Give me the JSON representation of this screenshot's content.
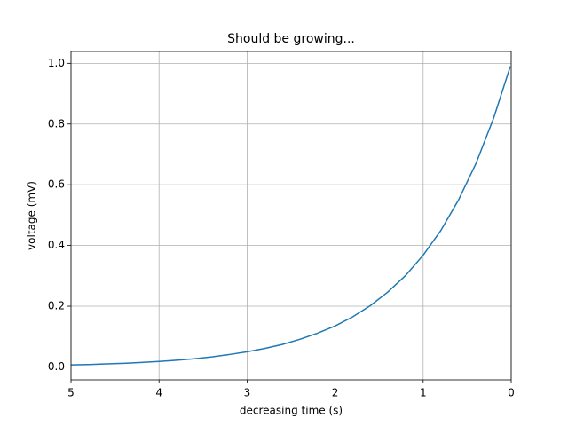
{
  "chart_data": {
    "type": "line",
    "title": "Should be growing...",
    "xlabel": "decreasing time (s)",
    "ylabel": "voltage (mV)",
    "x": [
      0.01,
      0.2,
      0.4,
      0.6,
      0.8,
      1.0,
      1.2,
      1.4,
      1.6,
      1.8,
      2.0,
      2.2,
      2.4,
      2.6,
      2.8,
      3.0,
      3.2,
      3.4,
      3.6,
      3.8,
      4.0,
      4.2,
      4.4,
      4.6,
      4.8,
      5.0
    ],
    "series": [
      {
        "color": "#1f77b4",
        "values": [
          0.99,
          0.819,
          0.67,
          0.549,
          0.449,
          0.368,
          0.301,
          0.247,
          0.202,
          0.165,
          0.135,
          0.111,
          0.091,
          0.074,
          0.061,
          0.05,
          0.041,
          0.033,
          0.027,
          0.022,
          0.018,
          0.015,
          0.012,
          0.01,
          0.008,
          0.007
        ]
      }
    ],
    "xlim": [
      5,
      0
    ],
    "xticks": [
      5,
      4,
      3,
      2,
      1,
      0
    ],
    "ylim": [
      -0.0425,
      1.039
    ],
    "yticks": [
      {
        "value": 0,
        "label": "0.0"
      },
      0.2,
      0.4,
      0.6,
      0.8,
      {
        "value": 1,
        "label": "1.0"
      }
    ],
    "grid": true
  }
}
